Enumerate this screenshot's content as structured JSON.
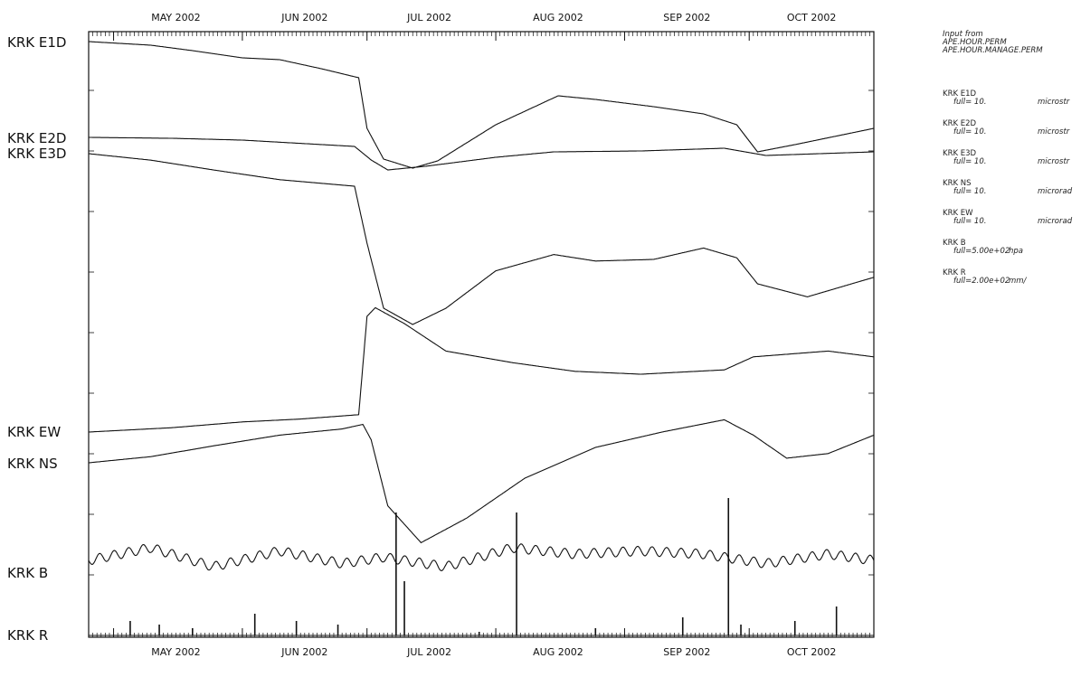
{
  "chart_data": {
    "type": "line",
    "title": "",
    "x_range": [
      "2002-04-25",
      "2002-10-31"
    ],
    "months": [
      "MAY 2002",
      "JUN 2002",
      "JUL 2002",
      "AUG 2002",
      "SEP 2002",
      "OCT 2002"
    ],
    "month_starts": [
      "2002-05-01",
      "2002-06-01",
      "2002-07-01",
      "2002-08-01",
      "2002-09-01",
      "2002-10-01"
    ],
    "grid": false,
    "legend_placement": "top-right",
    "legend_header": [
      "Input from",
      "APE.HOUR.PERM",
      "APE.HOUR.MANAGE.PERM"
    ],
    "series": [
      {
        "name": "KRK E1D",
        "full_scale": "full= 10.",
        "unit": "microstr",
        "oscillation": 0.4,
        "points": [
          [
            "2002-04-25",
            0.0
          ],
          [
            "2002-05-10",
            0.2
          ],
          [
            "2002-05-20",
            0.5
          ],
          [
            "2002-06-01",
            0.9
          ],
          [
            "2002-06-10",
            1.0
          ],
          [
            "2002-06-20",
            1.5
          ],
          [
            "2002-06-29",
            2.0
          ],
          [
            "2002-07-01",
            4.8
          ],
          [
            "2002-07-05",
            6.5
          ],
          [
            "2002-07-12",
            7.0
          ],
          [
            "2002-07-18",
            6.6
          ],
          [
            "2002-08-01",
            4.6
          ],
          [
            "2002-08-16",
            3.0
          ],
          [
            "2002-08-25",
            3.2
          ],
          [
            "2002-09-08",
            3.6
          ],
          [
            "2002-09-20",
            4.0
          ],
          [
            "2002-09-28",
            4.6
          ],
          [
            "2002-10-03",
            6.1
          ],
          [
            "2002-10-12",
            5.7
          ],
          [
            "2002-10-31",
            4.8
          ]
        ]
      },
      {
        "name": "KRK E2D",
        "full_scale": "full= 10.",
        "unit": "microstr",
        "oscillation": 0.3,
        "points": [
          [
            "2002-04-25",
            0.0
          ],
          [
            "2002-05-15",
            0.1
          ],
          [
            "2002-06-01",
            0.3
          ],
          [
            "2002-06-28",
            1.0
          ],
          [
            "2002-07-02",
            2.5
          ],
          [
            "2002-07-06",
            3.6
          ],
          [
            "2002-07-15",
            3.2
          ],
          [
            "2002-08-01",
            2.2
          ],
          [
            "2002-08-15",
            1.6
          ],
          [
            "2002-09-05",
            1.5
          ],
          [
            "2002-09-25",
            1.2
          ],
          [
            "2002-10-05",
            2.0
          ],
          [
            "2002-10-31",
            1.6
          ]
        ]
      },
      {
        "name": "KRK E3D",
        "full_scale": "full= 10.",
        "unit": "microstr",
        "oscillation": 0.4,
        "points": [
          [
            "2002-04-25",
            0.0
          ],
          [
            "2002-05-10",
            0.4
          ],
          [
            "2002-05-25",
            1.0
          ],
          [
            "2002-06-10",
            1.6
          ],
          [
            "2002-06-28",
            2.0
          ],
          [
            "2002-07-01",
            5.5
          ],
          [
            "2002-07-05",
            9.5
          ],
          [
            "2002-07-12",
            10.5
          ],
          [
            "2002-07-20",
            9.5
          ],
          [
            "2002-08-01",
            7.2
          ],
          [
            "2002-08-15",
            6.2
          ],
          [
            "2002-08-25",
            6.6
          ],
          [
            "2002-09-08",
            6.5
          ],
          [
            "2002-09-20",
            5.8
          ],
          [
            "2002-09-28",
            6.4
          ],
          [
            "2002-10-03",
            8.0
          ],
          [
            "2002-10-15",
            8.8
          ],
          [
            "2002-10-31",
            7.6
          ]
        ]
      },
      {
        "name": "KRK NS",
        "full_scale": "full= 10.",
        "unit": "microrad",
        "oscillation": 0.5,
        "points": [
          [
            "2002-04-25",
            0.0
          ],
          [
            "2002-05-10",
            -0.4
          ],
          [
            "2002-05-25",
            -1.1
          ],
          [
            "2002-06-10",
            -1.8
          ],
          [
            "2002-06-25",
            -2.2
          ],
          [
            "2002-06-30",
            -2.5
          ],
          [
            "2002-07-02",
            -1.5
          ],
          [
            "2002-07-06",
            2.8
          ],
          [
            "2002-07-14",
            5.2
          ],
          [
            "2002-07-25",
            3.6
          ],
          [
            "2002-08-08",
            1.0
          ],
          [
            "2002-08-25",
            -1.0
          ],
          [
            "2002-09-10",
            -2.0
          ],
          [
            "2002-09-25",
            -2.8
          ],
          [
            "2002-10-02",
            -1.8
          ],
          [
            "2002-10-10",
            -0.3
          ],
          [
            "2002-10-20",
            -0.6
          ],
          [
            "2002-10-31",
            -1.8
          ]
        ]
      },
      {
        "name": "KRK EW",
        "full_scale": "full= 10.",
        "unit": "microrad",
        "oscillation": 0.7,
        "points": [
          [
            "2002-04-25",
            0.0
          ],
          [
            "2002-05-15",
            -0.3
          ],
          [
            "2002-06-01",
            -0.7
          ],
          [
            "2002-06-15",
            -0.9
          ],
          [
            "2002-06-29",
            -1.2
          ],
          [
            "2002-07-01",
            -8.0
          ],
          [
            "2002-07-03",
            -8.6
          ],
          [
            "2002-07-10",
            -7.5
          ],
          [
            "2002-07-20",
            -5.6
          ],
          [
            "2002-08-05",
            -4.8
          ],
          [
            "2002-08-20",
            -4.2
          ],
          [
            "2002-09-05",
            -4.0
          ],
          [
            "2002-09-25",
            -4.3
          ],
          [
            "2002-10-02",
            -5.2
          ],
          [
            "2002-10-20",
            -5.6
          ],
          [
            "2002-10-31",
            -5.2
          ]
        ]
      },
      {
        "name": "KRK B",
        "full_scale": "full=5.00e+02",
        "unit": "hpa",
        "oscillation": 0.0,
        "points": [
          [
            "2002-04-25",
            0
          ],
          [
            "2002-05-10",
            -4
          ],
          [
            "2002-05-25",
            2
          ],
          [
            "2002-06-10",
            -3
          ],
          [
            "2002-06-25",
            1
          ],
          [
            "2002-07-05",
            -1
          ],
          [
            "2002-07-20",
            2
          ],
          [
            "2002-08-05",
            -4
          ],
          [
            "2002-08-20",
            -2
          ],
          [
            "2002-09-05",
            -3
          ],
          [
            "2002-09-20",
            -2
          ],
          [
            "2002-10-05",
            1
          ],
          [
            "2002-10-20",
            -2
          ],
          [
            "2002-10-31",
            0
          ]
        ]
      },
      {
        "name": "KRK R",
        "full_scale": "full=2.00e+02",
        "unit": "mm/",
        "oscillation": 0.0,
        "rain_events": [
          [
            "2002-05-05",
            4
          ],
          [
            "2002-05-12",
            3
          ],
          [
            "2002-05-20",
            2
          ],
          [
            "2002-06-04",
            6
          ],
          [
            "2002-06-14",
            4
          ],
          [
            "2002-06-24",
            3
          ],
          [
            "2002-07-08",
            34
          ],
          [
            "2002-07-10",
            15
          ],
          [
            "2002-07-28",
            1
          ],
          [
            "2002-08-06",
            34
          ],
          [
            "2002-08-25",
            2
          ],
          [
            "2002-09-15",
            5
          ],
          [
            "2002-09-26",
            38
          ],
          [
            "2002-09-29",
            3
          ],
          [
            "2002-10-12",
            4
          ],
          [
            "2002-10-22",
            8
          ]
        ]
      }
    ]
  }
}
